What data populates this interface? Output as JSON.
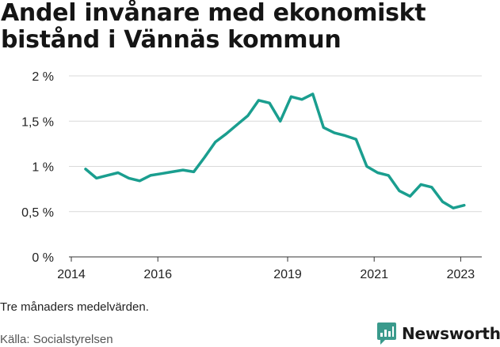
{
  "title": "Andel invånare med ekonomiskt bistånd i Vännäs kommun",
  "note": "Tre månaders medelvärden.",
  "source": "Källa: Socialstyrelsen",
  "logo": {
    "text": "Newsworthy",
    "icon": "newsworthy-chart-icon",
    "color": "#3a9a8c"
  },
  "colors": {
    "line": "#1a9e8f",
    "grid": "#d9d9d9",
    "axis": "#333333"
  },
  "chart_data": {
    "type": "line",
    "title": "Andel invånare med ekonomiskt bistånd i Vännäs kommun",
    "xlabel": "",
    "ylabel": "",
    "xlim": [
      2014.0,
      2023.8
    ],
    "ylim": [
      0,
      2
    ],
    "yticks": [
      {
        "value": 0,
        "label": "0 %"
      },
      {
        "value": 0.5,
        "label": "0,5 %"
      },
      {
        "value": 1,
        "label": "1 %"
      },
      {
        "value": 1.5,
        "label": "1,5 %"
      },
      {
        "value": 2,
        "label": "2 %"
      }
    ],
    "xticks": [
      {
        "value": 2014,
        "label": "2014"
      },
      {
        "value": 2016,
        "label": "2016"
      },
      {
        "value": 2019,
        "label": "2019"
      },
      {
        "value": 2021,
        "label": "2021"
      },
      {
        "value": 2023,
        "label": "2023"
      }
    ],
    "grid": "horizontal",
    "series": [
      {
        "x": [
          2014.33,
          2014.58,
          2014.83,
          2015.08,
          2015.33,
          2015.58,
          2015.83,
          2016.08,
          2016.33,
          2016.58,
          2016.83,
          2017.08,
          2017.33,
          2017.58,
          2017.83,
          2018.08,
          2018.33,
          2018.58,
          2018.83,
          2019.08,
          2019.33,
          2019.58,
          2019.83,
          2020.08,
          2020.33,
          2020.58,
          2020.83,
          2021.08,
          2021.33,
          2021.58,
          2021.83,
          2022.08,
          2022.33,
          2022.58,
          2022.83,
          2023.08
        ],
        "values": [
          0.97,
          0.87,
          0.9,
          0.93,
          0.87,
          0.84,
          0.9,
          0.92,
          0.94,
          0.96,
          0.94,
          1.1,
          1.27,
          1.36,
          1.46,
          1.56,
          1.73,
          1.7,
          1.5,
          1.77,
          1.74,
          1.8,
          1.43,
          1.37,
          1.34,
          1.3,
          1.0,
          0.93,
          0.9,
          0.73,
          0.67,
          0.8,
          0.77,
          0.61,
          0.54,
          0.57
        ]
      }
    ]
  }
}
